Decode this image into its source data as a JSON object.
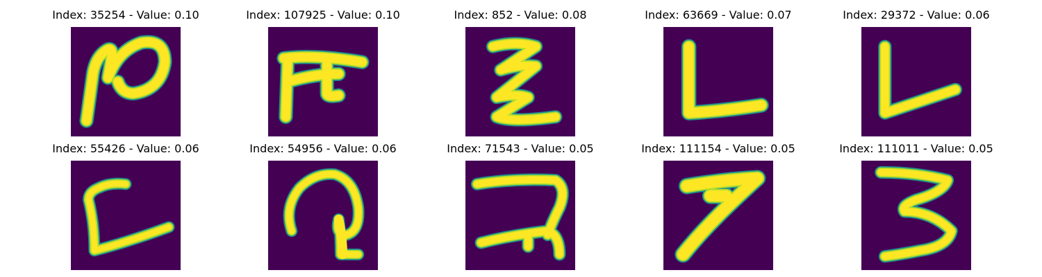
{
  "colors": {
    "background": "#440154",
    "stroke_core": "#fde725",
    "stroke_edge_light": "#b5de2b",
    "stroke_edge_mid": "#35b779",
    "stroke_edge_dark": "#21918c",
    "text": "#000000"
  },
  "panels": [
    {
      "title": "Index: 35254 - Value: 0.10",
      "glyph": "handwritten-character-1"
    },
    {
      "title": "Index: 107925 - Value: 0.10",
      "glyph": "handwritten-character-2"
    },
    {
      "title": "Index: 852 - Value: 0.08",
      "glyph": "handwritten-character-3"
    },
    {
      "title": "Index: 63669 - Value: 0.07",
      "glyph": "handwritten-character-4"
    },
    {
      "title": "Index: 29372 - Value: 0.06",
      "glyph": "handwritten-character-5"
    },
    {
      "title": "Index: 55426 - Value: 0.06",
      "glyph": "handwritten-character-6"
    },
    {
      "title": "Index: 54956 - Value: 0.06",
      "glyph": "handwritten-character-7"
    },
    {
      "title": "Index: 71543 - Value: 0.05",
      "glyph": "handwritten-character-8"
    },
    {
      "title": "Index: 111154 - Value: 0.05",
      "glyph": "handwritten-character-9"
    },
    {
      "title": "Index: 111011 - Value: 0.05",
      "glyph": "handwritten-character-10"
    }
  ]
}
